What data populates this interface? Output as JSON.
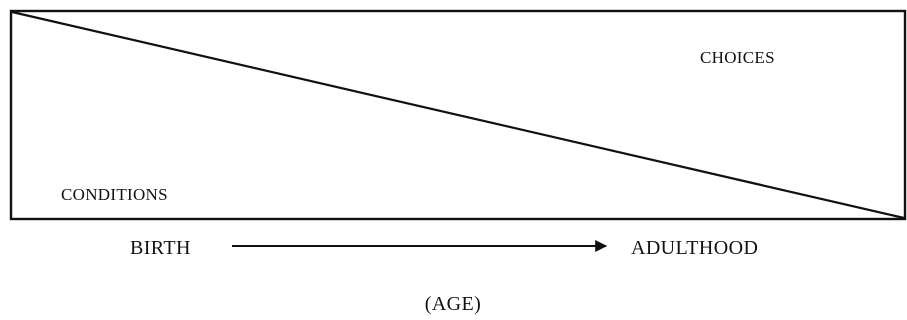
{
  "diagram": {
    "region_labels": {
      "upper_right": "CHOICES",
      "lower_left": "CONDITIONS"
    },
    "timeline": {
      "start_label": "BIRTH",
      "end_label": "ADULTHOOD",
      "axis_label": "(AGE)"
    },
    "colors": {
      "ink": "#111111",
      "background": "#ffffff"
    }
  }
}
